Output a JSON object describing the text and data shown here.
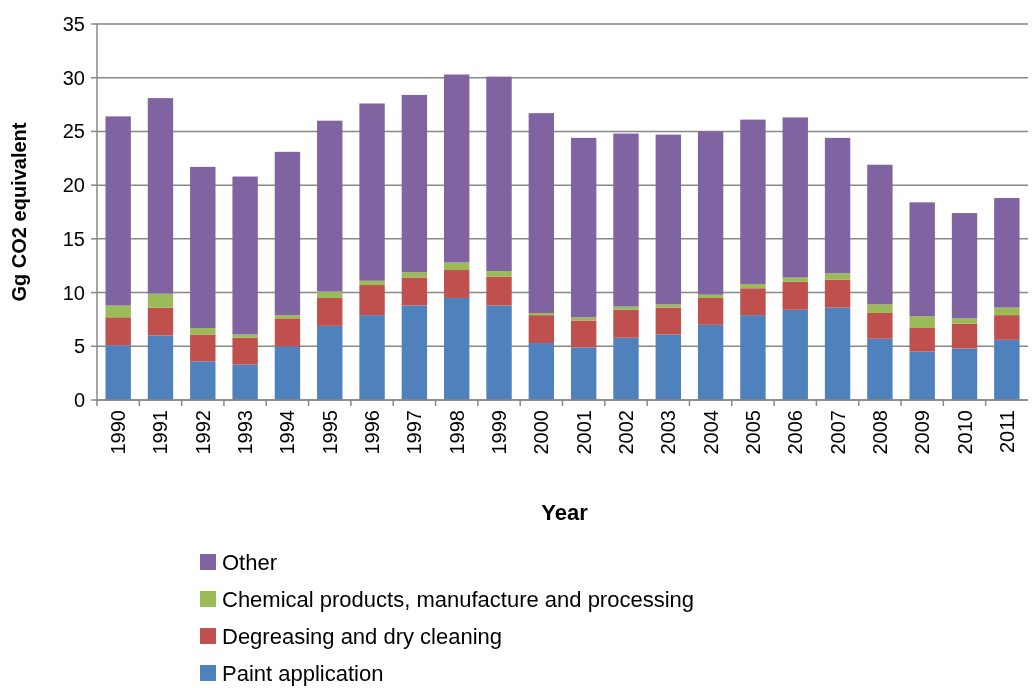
{
  "chart_data": {
    "type": "bar",
    "stacked": true,
    "xlabel": "Year",
    "ylabel": "Gg CO2 equivalent",
    "categories": [
      "1990",
      "1991",
      "1992",
      "1993",
      "1994",
      "1995",
      "1996",
      "1997",
      "1998",
      "1999",
      "2000",
      "2001",
      "2002",
      "2003",
      "2004",
      "2005",
      "2006",
      "2007",
      "2008",
      "2009",
      "2010",
      "2011"
    ],
    "series": [
      {
        "name": "Paint application",
        "color": "#4f81bd",
        "values": [
          5.1,
          6.0,
          3.6,
          3.3,
          5.0,
          6.9,
          7.9,
          8.8,
          9.5,
          8.8,
          5.3,
          4.9,
          5.8,
          6.1,
          7.0,
          7.9,
          8.4,
          8.6,
          5.7,
          4.5,
          4.8,
          5.6
        ]
      },
      {
        "name": "Degreasing and dry cleaning",
        "color": "#c0504d",
        "values": [
          2.6,
          2.6,
          2.5,
          2.5,
          2.6,
          2.6,
          2.8,
          2.6,
          2.6,
          2.7,
          2.6,
          2.5,
          2.6,
          2.5,
          2.5,
          2.5,
          2.6,
          2.6,
          2.4,
          2.2,
          2.3,
          2.3
        ]
      },
      {
        "name": "Chemical products, manufacture and processing",
        "color": "#9bbb59",
        "values": [
          1.1,
          1.3,
          0.6,
          0.3,
          0.3,
          0.6,
          0.4,
          0.5,
          0.7,
          0.5,
          0.2,
          0.3,
          0.3,
          0.3,
          0.3,
          0.4,
          0.4,
          0.6,
          0.8,
          1.1,
          0.5,
          0.7
        ]
      },
      {
        "name": "Other",
        "color": "#8064a2",
        "values": [
          17.6,
          18.2,
          15.0,
          14.7,
          15.2,
          15.9,
          16.5,
          16.5,
          17.5,
          18.1,
          18.6,
          16.7,
          16.1,
          15.8,
          15.2,
          15.3,
          14.9,
          12.6,
          13.0,
          10.6,
          9.8,
          10.2
        ]
      }
    ],
    "ylim": [
      0,
      35
    ],
    "yticks": [
      0,
      5,
      10,
      15,
      20,
      25,
      30,
      35
    ],
    "grid": "y",
    "legend": "bottom"
  }
}
